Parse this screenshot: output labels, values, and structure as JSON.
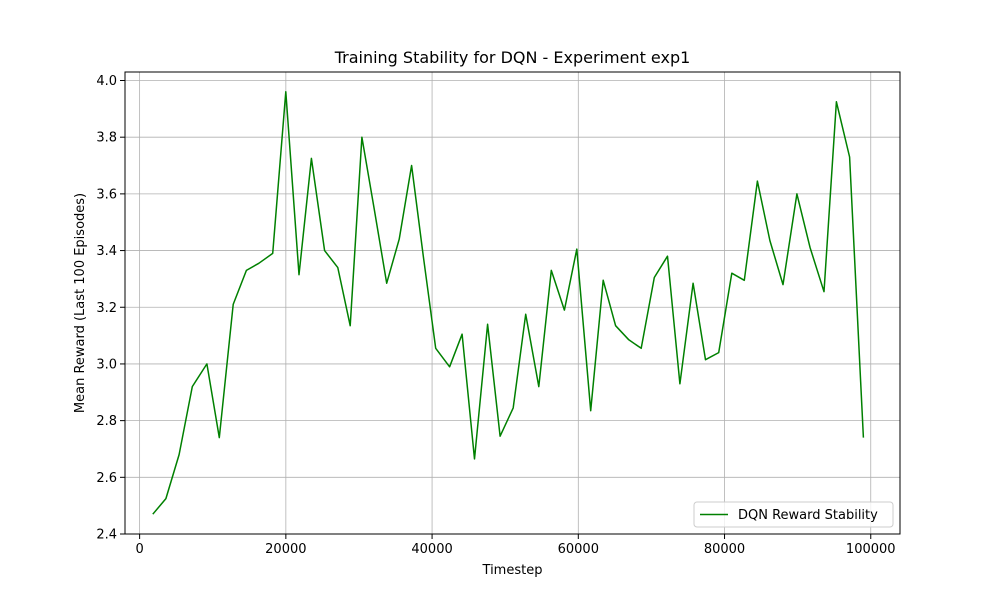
{
  "chart_data": {
    "type": "line",
    "title": "Training Stability for DQN - Experiment exp1",
    "xlabel": "Timestep",
    "ylabel": "Mean Reward (Last 100 Episodes)",
    "xlim": [
      -2000,
      104000
    ],
    "ylim": [
      2.4,
      4.03
    ],
    "xticks": [
      0,
      20000,
      40000,
      60000,
      80000,
      100000
    ],
    "xtick_labels": [
      "0",
      "20000",
      "40000",
      "60000",
      "80000",
      "100000"
    ],
    "yticks": [
      2.4,
      2.6,
      2.8,
      3.0,
      3.2,
      3.4,
      3.6,
      3.8,
      4.0
    ],
    "ytick_labels": [
      "2.4",
      "2.6",
      "2.8",
      "3.0",
      "3.2",
      "3.4",
      "3.6",
      "3.8",
      "4.0"
    ],
    "grid": true,
    "legend_position": "bottom-right",
    "series": [
      {
        "name": "DQN Reward Stability",
        "color": "#008000",
        "x": [
          1800,
          3600,
          5400,
          7200,
          9200,
          10900,
          12800,
          14600,
          16300,
          18200,
          20000,
          21800,
          23500,
          25300,
          27100,
          28800,
          30400,
          32100,
          33800,
          35500,
          37200,
          38800,
          40500,
          42400,
          44100,
          45800,
          47600,
          49300,
          51100,
          52800,
          54600,
          56300,
          58100,
          59800,
          61700,
          63400,
          65100,
          66900,
          68600,
          70400,
          72200,
          73900,
          75700,
          77400,
          79200,
          81000,
          82700,
          84500,
          86200,
          88000,
          89900,
          91700,
          93600,
          95300,
          97100,
          99000
        ],
        "y": [
          2.47,
          2.525,
          2.68,
          2.92,
          3.0,
          2.74,
          3.21,
          3.33,
          3.355,
          3.39,
          3.96,
          3.315,
          3.725,
          3.4,
          3.34,
          3.135,
          3.8,
          3.545,
          3.285,
          3.44,
          3.7,
          3.38,
          3.055,
          2.99,
          3.105,
          2.665,
          3.14,
          2.745,
          2.845,
          3.175,
          2.92,
          3.33,
          3.19,
          3.405,
          2.835,
          3.295,
          3.135,
          3.085,
          3.055,
          3.305,
          3.38,
          2.93,
          3.285,
          3.015,
          3.04,
          3.32,
          3.295,
          3.645,
          3.435,
          3.28,
          3.6,
          3.41,
          3.255,
          3.925,
          3.73,
          2.74
        ]
      }
    ]
  }
}
